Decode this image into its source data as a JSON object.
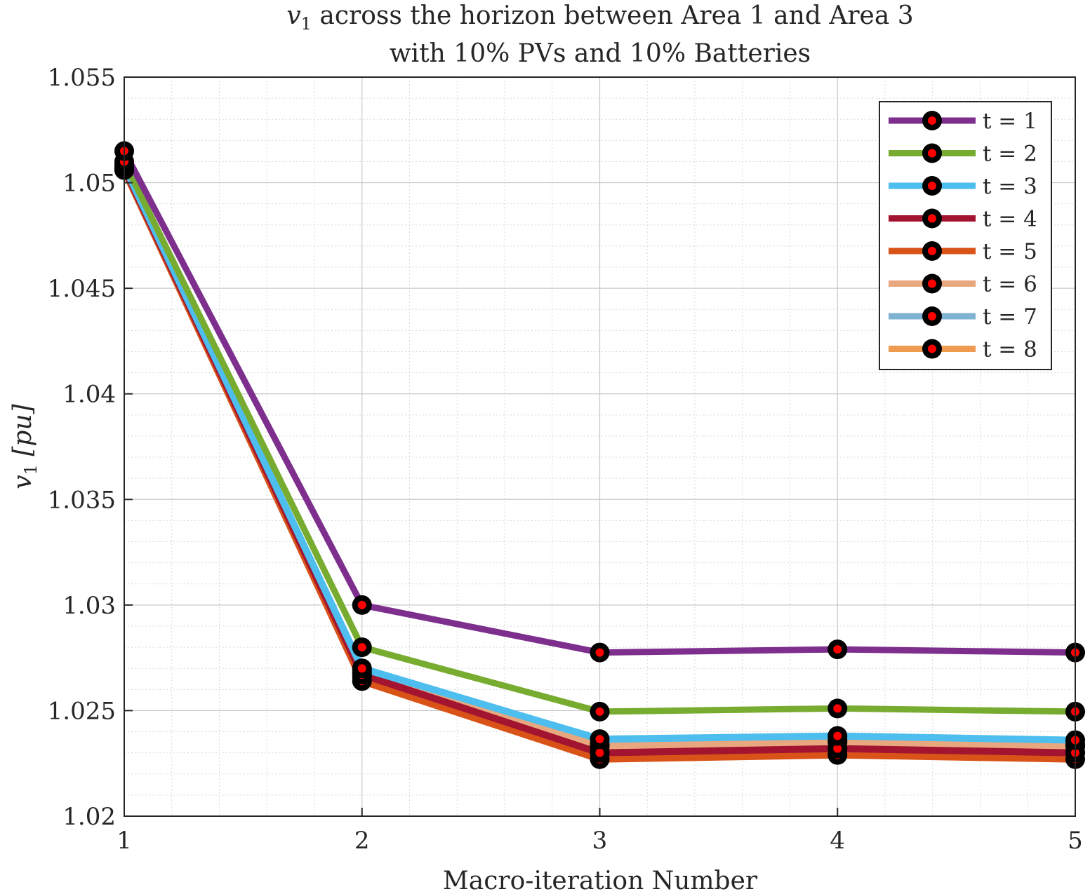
{
  "chart_data": {
    "type": "line",
    "title_line1_var": "v",
    "title_line1_sub": "1",
    "title_line1_rest": " across the horizon between Area 1 and Area 3",
    "title_line2": "with 10% PVs and 10% Batteries",
    "xlabel": "Macro-iteration Number",
    "ylabel_var": "v",
    "ylabel_sub": "1",
    "ylabel_unit": " [pu]",
    "xlim": [
      1,
      5
    ],
    "ylim": [
      1.02,
      1.055
    ],
    "x_ticks": [
      1,
      2,
      3,
      4,
      5
    ],
    "y_ticks": [
      1.02,
      1.025,
      1.03,
      1.035,
      1.04,
      1.045,
      1.05,
      1.055
    ],
    "y_tick_labels": [
      "1.02",
      "1.025",
      "1.03",
      "1.035",
      "1.04",
      "1.045",
      "1.05",
      "1.055"
    ],
    "grid": true,
    "minor_grid": true,
    "legend_position": "top-right",
    "marker_color": "#ff0000",
    "marker_edge": "#000000",
    "x": [
      1,
      2,
      3,
      4,
      5
    ],
    "series": [
      {
        "name": "t = 1",
        "color": "#7e2f8e",
        "values": [
          1.0515,
          1.03,
          1.02775,
          1.0279,
          1.02775
        ]
      },
      {
        "name": "t = 2",
        "color": "#77ac30",
        "values": [
          1.051,
          1.028,
          1.02495,
          1.0251,
          1.02495
        ]
      },
      {
        "name": "t = 3",
        "color": "#4dbeee",
        "values": [
          1.0508,
          1.027,
          1.02365,
          1.0238,
          1.0236
        ]
      },
      {
        "name": "t = 4",
        "color": "#a2142f",
        "values": [
          1.0507,
          1.0267,
          1.023,
          1.0232,
          1.023
        ]
      },
      {
        "name": "t = 5",
        "color": "#d95319",
        "values": [
          1.0506,
          1.0264,
          1.0227,
          1.0229,
          1.0227
        ]
      },
      {
        "name": "t = 6",
        "color": "#e8a77e",
        "values": [
          1.0507,
          1.0268,
          1.0233,
          1.0235,
          1.0233
        ]
      },
      {
        "name": "t = 7",
        "color": "#7fb2d0",
        "values": [
          1.0508,
          1.0269,
          1.0234,
          1.0236,
          1.0234
        ]
      },
      {
        "name": "t = 8",
        "color": "#ee9a50",
        "values": [
          1.0506,
          1.0266,
          1.023,
          1.0232,
          1.023
        ]
      }
    ]
  }
}
